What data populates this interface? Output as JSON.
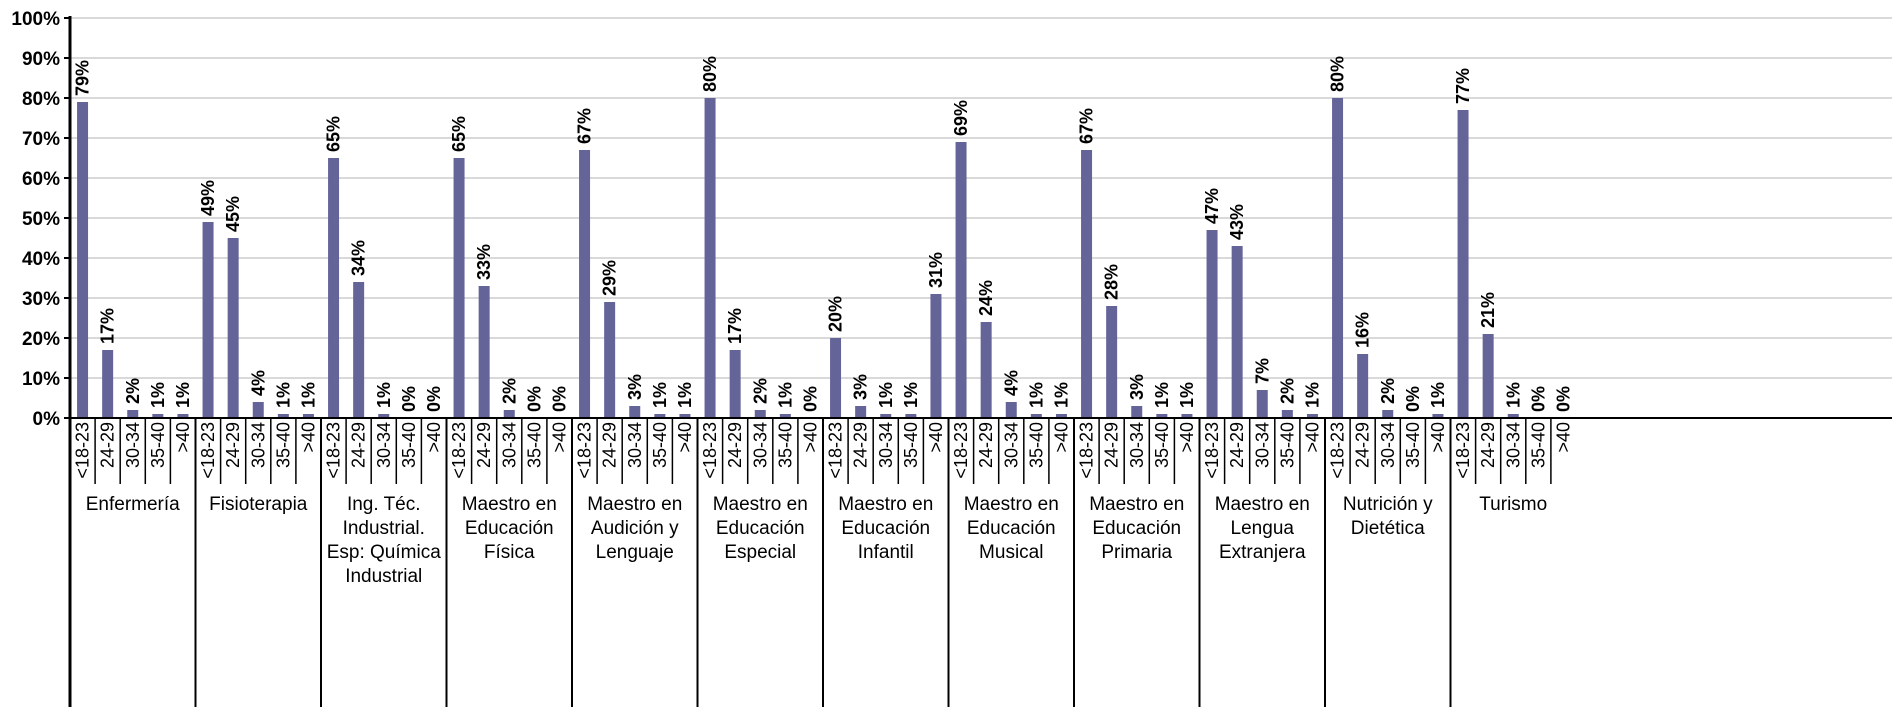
{
  "chart_data": {
    "type": "bar",
    "title": "",
    "xlabel": "",
    "ylabel": "",
    "ylim": [
      0,
      100
    ],
    "y_ticks": [
      "0%",
      "10%",
      "20%",
      "30%",
      "40%",
      "50%",
      "60%",
      "70%",
      "80%",
      "90%",
      "100%"
    ],
    "grid": "horizontal",
    "bar_color": "#646499",
    "age_ranges": [
      "<18-23",
      "24-29",
      "30-34",
      "35-40",
      ">40"
    ],
    "groups": [
      {
        "name": "Enfermería",
        "values": [
          79,
          17,
          2,
          1,
          1
        ],
        "labels": [
          "79%",
          "17%",
          "2%",
          "1%",
          "1%"
        ]
      },
      {
        "name": "Fisioterapia",
        "values": [
          49,
          45,
          4,
          1,
          1
        ],
        "labels": [
          "49%",
          "45%",
          "4%",
          "1%",
          "1%"
        ]
      },
      {
        "name": "Ing. Téc. Industrial. Esp: Química Industrial",
        "values": [
          65,
          34,
          1,
          0,
          0
        ],
        "labels": [
          "65%",
          "34%",
          "1%",
          "0%",
          "0%"
        ]
      },
      {
        "name": "Maestro en Educación Física",
        "values": [
          65,
          33,
          2,
          0,
          0
        ],
        "labels": [
          "65%",
          "33%",
          "2%",
          "0%",
          "0%"
        ]
      },
      {
        "name": "Maestro en Audición y Lenguaje",
        "values": [
          67,
          29,
          3,
          1,
          1
        ],
        "labels": [
          "67%",
          "29%",
          "3%",
          "1%",
          "1%"
        ]
      },
      {
        "name": "Maestro en Educación Especial",
        "values": [
          80,
          17,
          2,
          1,
          0
        ],
        "labels": [
          "80%",
          "17%",
          "2%",
          "1%",
          "0%"
        ]
      },
      {
        "name": "Maestro en Educación Infantil",
        "values": [
          20,
          3,
          1,
          1,
          31
        ],
        "labels": [
          "20%",
          "3%",
          "1%",
          "1%",
          "31%"
        ]
      },
      {
        "name": "Maestro en Educación Musical",
        "values": [
          69,
          24,
          4,
          1,
          1
        ],
        "labels": [
          "69%",
          "24%",
          "4%",
          "1%",
          "1%"
        ]
      },
      {
        "name": "Maestro en Educación Primaria",
        "values": [
          67,
          28,
          3,
          1,
          1
        ],
        "labels": [
          "67%",
          "28%",
          "3%",
          "1%",
          "1%"
        ]
      },
      {
        "name": "Maestro en Lengua Extranjera",
        "values": [
          47,
          43,
          7,
          2,
          1
        ],
        "labels": [
          "47%",
          "43%",
          "7%",
          "2%",
          "1%"
        ]
      },
      {
        "name": "Nutrición y Dietética",
        "values": [
          80,
          16,
          2,
          0,
          1
        ],
        "labels": [
          "80%",
          "16%",
          "2%",
          "0%",
          "1%"
        ]
      },
      {
        "name": "Turismo",
        "values": [
          77,
          21,
          1,
          0,
          0
        ],
        "labels": [
          "77%",
          "21%",
          "1%",
          "0%",
          "0%"
        ]
      }
    ]
  }
}
